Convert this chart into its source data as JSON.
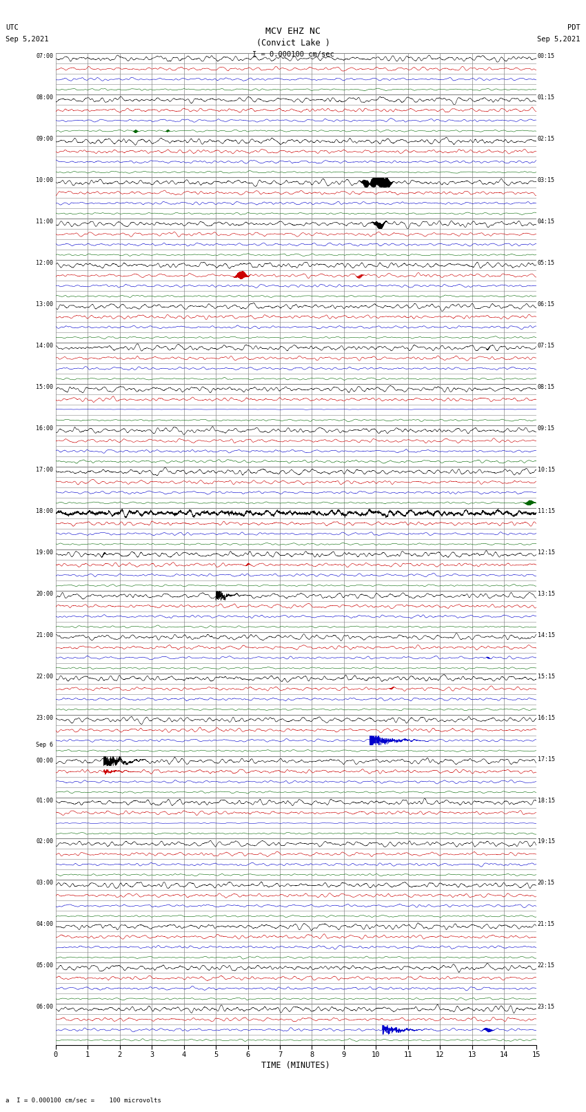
{
  "title_line1": "MCV EHZ NC",
  "title_line2": "(Convict Lake )",
  "scale_label": "I = 0.000100 cm/sec",
  "footer_label": "a  I = 0.000100 cm/sec =    100 microvolts",
  "utc_label": "UTC",
  "utc_date": "Sep 5,2021",
  "pdt_label": "PDT",
  "pdt_date": "Sep 5,2021",
  "xlabel": "TIME (MINUTES)",
  "left_labels": [
    "07:00",
    "08:00",
    "09:00",
    "10:00",
    "11:00",
    "12:00",
    "13:00",
    "14:00",
    "15:00",
    "16:00",
    "17:00",
    "18:00",
    "19:00",
    "20:00",
    "21:00",
    "22:00",
    "23:00",
    "Sep 6\n00:00",
    "01:00",
    "02:00",
    "03:00",
    "04:00",
    "05:00",
    "06:00"
  ],
  "right_labels": [
    "00:15",
    "01:15",
    "02:15",
    "03:15",
    "04:15",
    "05:15",
    "06:15",
    "07:15",
    "08:15",
    "09:15",
    "10:15",
    "11:15",
    "12:15",
    "13:15",
    "14:15",
    "15:15",
    "16:15",
    "17:15",
    "18:15",
    "19:15",
    "20:15",
    "21:15",
    "22:15",
    "23:15"
  ],
  "num_hours": 24,
  "traces_per_hour": 4,
  "minutes_per_row": 15,
  "xlim": [
    0,
    15
  ],
  "background_color": "#ffffff",
  "trace_colors": [
    "#000000",
    "#cc0000",
    "#0000cc",
    "#006600"
  ],
  "grid_color": "#888888",
  "fig_width": 8.5,
  "fig_height": 16.13
}
